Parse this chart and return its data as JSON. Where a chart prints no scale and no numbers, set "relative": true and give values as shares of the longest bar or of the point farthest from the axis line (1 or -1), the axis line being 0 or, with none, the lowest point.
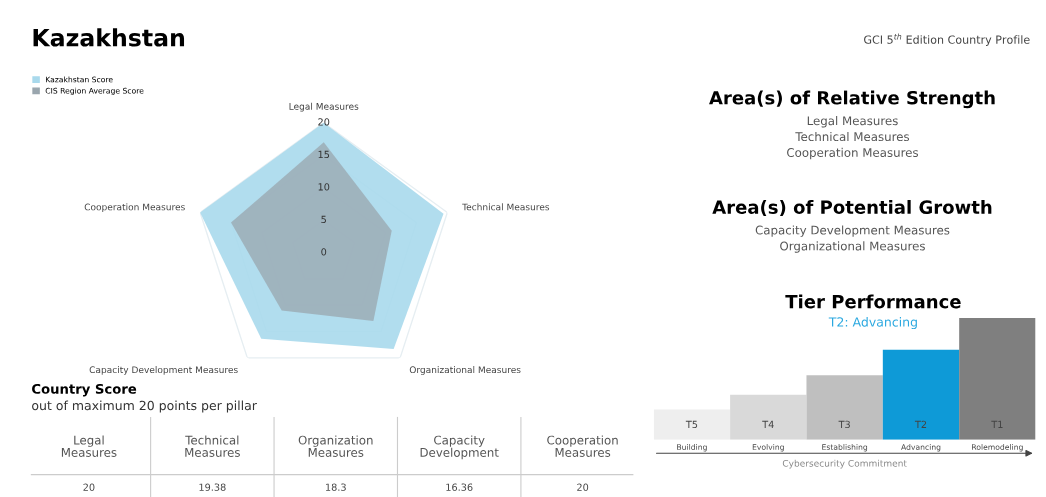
{
  "chart_data": [
    {
      "type": "radar",
      "title": "Kazakhstan",
      "categories": [
        "Legal Measures",
        "Technical Measures",
        "Organizational Measures",
        "Capacity Development Measures",
        "Cooperation Measures"
      ],
      "series": [
        {
          "name": "Kazakhstan Score",
          "color": "#a9d9ec",
          "values": [
            20,
            19.38,
            18.3,
            16.36,
            20
          ]
        },
        {
          "name": "CIS Region Average Score",
          "color": "#9aa6ae",
          "values": [
            17,
            11,
            13,
            11,
            15
          ]
        }
      ],
      "ylim": [
        0,
        20
      ],
      "yticks": [
        0,
        5,
        10,
        15,
        20
      ],
      "legend": "top left",
      "annotations": [
        "GCI 5$^{th}$ Edition Country Profile",
        "Country Score",
        "out of maximum 20 points per pillar",
        "Legal Measures",
        "Technical Measures",
        "Organization Measures",
        "Capacity Development",
        "Cooperation Measures",
        "20",
        "19.38",
        "18.3",
        "16.36",
        "20"
      ]
    },
    {
      "type": "other",
      "title": "Area(s) of Relative Strength",
      "annotations": [
        "Legal Measures",
        "Technical Measures",
        "Cooperation Measures"
      ]
    },
    {
      "type": "other",
      "title": "Area(s) of Potential Growth",
      "annotations": [
        "Capacity Development Measures",
        "Organizational Measures"
      ]
    },
    {
      "type": "bar",
      "title": "Tier Performance",
      "subtitle": "T2: Advancing",
      "xlabel": "Cybersecurity Commitment",
      "relative": true,
      "categories": [
        "Building",
        "Evolving",
        "Establishing",
        "Advancing",
        "Rolemodeling"
      ],
      "values": [
        0.25,
        0.37,
        0.53,
        0.74,
        1
      ],
      "colors": [
        "#eeeeee",
        "#d9d9d9",
        "#bfbfbf",
        "#0e9ad7",
        "#7f7f7f"
      ],
      "annotations": [
        "T5",
        "T4",
        "T3",
        "T2",
        "T1"
      ]
    }
  ]
}
